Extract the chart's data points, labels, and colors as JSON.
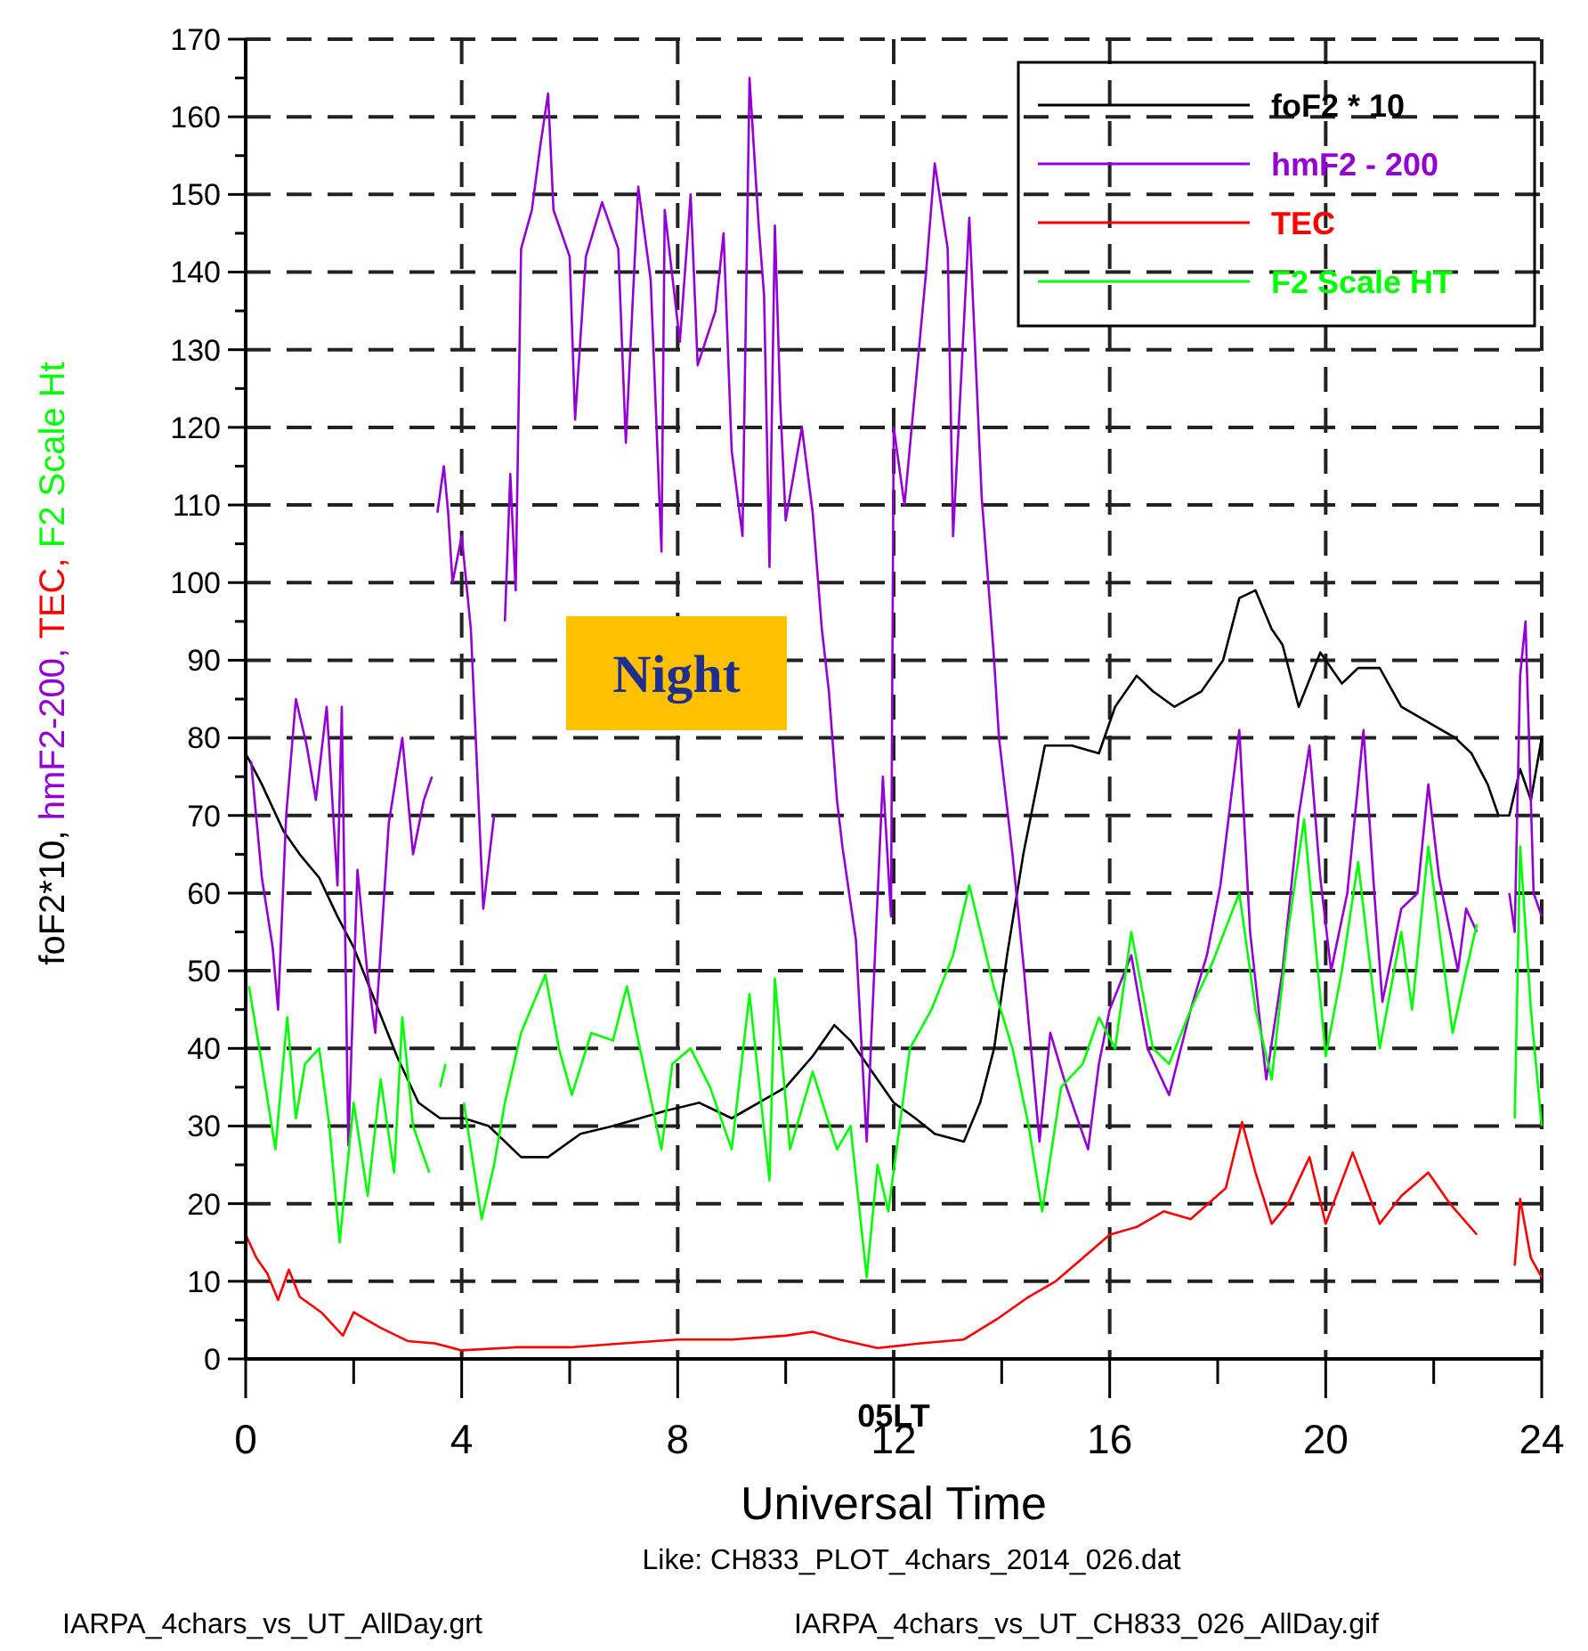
{
  "chart_data": {
    "type": "line",
    "ylabel": "foF2*10, hmF2-200, TEC, F2 Scale Ht",
    "xlabel": "Universal Time",
    "xlim": [
      0,
      24
    ],
    "xticks": [
      0,
      {
        "value": 2,
        "label": null
      },
      4,
      {
        "value": 6,
        "label": null
      },
      8,
      {
        "value": 10,
        "label": null
      },
      12,
      {
        "value": 14,
        "label": null
      },
      16,
      {
        "value": 18,
        "label": null
      },
      20,
      {
        "value": 22,
        "label": null
      },
      24
    ],
    "ylim": [
      0,
      170
    ],
    "yticks": [
      0,
      {
        "value": 5,
        "label": null
      },
      10,
      {
        "value": 15,
        "label": null
      },
      20,
      {
        "value": 25,
        "label": null
      },
      30,
      {
        "value": 35,
        "label": null
      },
      40,
      {
        "value": 45,
        "label": null
      },
      50,
      {
        "value": 55,
        "label": null
      },
      60,
      {
        "value": 65,
        "label": null
      },
      70,
      {
        "value": 75,
        "label": null
      },
      80,
      {
        "value": 85,
        "label": null
      },
      90,
      {
        "value": 95,
        "label": null
      },
      100,
      {
        "value": 105,
        "label": null
      },
      110,
      {
        "value": 115,
        "label": null
      },
      120,
      {
        "value": 125,
        "label": null
      },
      130,
      {
        "value": 135,
        "label": null
      },
      140,
      {
        "value": 145,
        "label": null
      },
      150,
      {
        "value": 155,
        "label": null
      },
      160,
      {
        "value": 165,
        "label": null
      },
      170
    ],
    "grid": true,
    "legend": "top right",
    "annotations": [
      {
        "text": "05LT",
        "x": 12
      },
      "Night",
      "Like: CH833_PLOT_4chars_2014_026.dat",
      "IARPA_4chars_vs_UT_AllDay.grt",
      "IARPA_4chars_vs_UT_CH833_026_AllDay.gif"
    ],
    "series": [
      {
        "name": "foF2 * 10",
        "color": "#000000",
        "x": [
          0,
          0.3,
          0.7,
          1.0,
          1.36,
          1.7,
          2.0,
          2.4,
          2.8,
          3.2,
          3.6,
          4.04,
          4.5,
          5.1,
          5.6,
          6.2,
          6.8,
          7.3,
          7.8,
          8.4,
          9.0,
          9.5,
          10.0,
          10.5,
          10.9,
          11.2,
          11.6,
          12.0,
          12.4,
          12.76,
          13.3,
          13.6,
          13.86,
          14.1,
          14.4,
          14.8,
          15.3,
          15.8,
          16.1,
          16.5,
          16.8,
          17.2,
          17.7,
          18.1,
          18.4,
          18.7,
          19.0,
          19.2,
          19.5,
          19.9,
          20.3,
          20.6,
          21.0,
          21.4,
          21.9,
          22.4,
          22.7,
          23.0,
          23.2,
          23.4,
          23.6,
          23.8,
          24
        ],
        "values": [
          78,
          74,
          68,
          65,
          62,
          57,
          53,
          46,
          39,
          33,
          31,
          31,
          30,
          26,
          26,
          29,
          30,
          31,
          32,
          33,
          31,
          33,
          35,
          39,
          43,
          41,
          37,
          33,
          31,
          29,
          28,
          33,
          40,
          52,
          65,
          79,
          79,
          78,
          84,
          88,
          86,
          84,
          86,
          90,
          98,
          99,
          94,
          92,
          84,
          91,
          87,
          89,
          89,
          84,
          82,
          80,
          78,
          74,
          70,
          70,
          76,
          72,
          80
        ]
      },
      {
        "name": "hmF2 - 200",
        "color": "#9400d3",
        "x": [
          0.1,
          0.3,
          0.5,
          0.6,
          0.75,
          0.93,
          1.13,
          1.3,
          1.5,
          1.7,
          1.78,
          1.9,
          2.07,
          2.25,
          2.4,
          2.65,
          2.9,
          3.1,
          3.3,
          3.45,
          3.5,
          3.55,
          3.67,
          3.75,
          3.83,
          4.0,
          4.17,
          4.26,
          4.4,
          4.6,
          4.65,
          4.8,
          4.9,
          5.0,
          5.1,
          5.3,
          5.45,
          5.6,
          5.7,
          6.0,
          6.1,
          6.3,
          6.6,
          6.9,
          7.04,
          7.27,
          7.5,
          7.7,
          7.76,
          8.04,
          8.24,
          8.37,
          8.7,
          8.85,
          9.0,
          9.2,
          9.33,
          9.5,
          9.6,
          9.7,
          9.8,
          9.9,
          10.0,
          10.3,
          10.5,
          10.67,
          10.8,
          10.95,
          11.05,
          11.3,
          11.5,
          11.8,
          11.95,
          12.0,
          12.2,
          12.4,
          12.6,
          12.76,
          13.0,
          13.1,
          13.4,
          13.63,
          13.85,
          13.95,
          14.2,
          14.4,
          14.7,
          14.9,
          15.2,
          15.6,
          15.8,
          16.0,
          16.4,
          16.7,
          17.1,
          17.5,
          17.8,
          18.05,
          18.4,
          18.6,
          18.9,
          19.2,
          19.5,
          19.7,
          19.9,
          20.1,
          20.4,
          20.7,
          20.9,
          21.05,
          21.4,
          21.7,
          21.9,
          22.1,
          22.45,
          22.6,
          22.8,
          22.9,
          23.4,
          23.5,
          23.6,
          23.7,
          23.85,
          24
        ],
        "values": [
          77,
          62,
          53,
          45,
          70,
          85,
          79,
          72,
          84,
          61,
          84,
          27.5,
          63,
          50,
          42,
          69,
          80,
          65,
          72,
          75,
          null,
          109,
          115,
          109,
          100,
          106,
          94,
          80,
          58,
          70,
          null,
          95,
          114,
          99,
          143,
          148,
          156,
          163,
          148,
          142,
          121,
          142,
          149,
          143,
          118,
          151,
          139,
          104,
          148,
          131,
          150,
          128,
          135,
          145,
          117,
          106,
          165,
          146,
          137,
          102,
          146,
          123,
          108,
          120,
          109,
          94,
          86,
          72,
          66,
          54,
          28,
          75,
          57,
          120,
          110,
          125,
          140,
          154,
          143,
          106,
          147,
          111,
          91,
          80,
          65,
          51,
          28,
          42,
          35,
          27,
          38,
          45,
          52,
          40,
          34,
          45,
          52,
          61,
          81,
          55,
          36,
          50,
          70,
          79,
          62,
          50,
          60,
          81,
          60,
          46,
          58,
          60,
          74,
          62,
          50,
          58,
          55,
          null,
          60,
          55,
          88,
          95,
          60,
          57
        ]
      },
      {
        "name": "TEC",
        "color": "#ff0000",
        "x": [
          0,
          0.2,
          0.4,
          0.6,
          0.8,
          1.0,
          1.4,
          1.8,
          2.0,
          2.5,
          3.0,
          3.5,
          4.0,
          5,
          6,
          7,
          8,
          9,
          10,
          10.5,
          11,
          11.7,
          12.5,
          13.3,
          13.95,
          14.5,
          15,
          15.5,
          16,
          16.5,
          17,
          17.5,
          18.15,
          18.45,
          18.7,
          19.0,
          19.3,
          19.7,
          20.0,
          20.5,
          21.0,
          21.4,
          21.9,
          22.3,
          22.8,
          22.9,
          23.5,
          23.6,
          23.8,
          24
        ],
        "values": [
          16,
          13,
          11,
          7.6,
          11.5,
          8,
          6,
          3,
          6,
          4,
          2.3,
          2,
          1.1,
          1.5,
          1.5,
          2,
          2.5,
          2.5,
          3,
          3.5,
          2.5,
          1.4,
          2,
          2.5,
          5.3,
          8,
          10,
          13,
          16,
          17,
          19,
          18,
          22,
          30.5,
          24,
          17.4,
          20,
          26,
          17.4,
          26.6,
          17.4,
          21,
          24,
          20,
          16,
          null,
          12,
          20.6,
          13,
          10.5
        ]
      },
      {
        "name": "F2 Scale HT",
        "color": "#00ff00",
        "x": [
          0.06,
          0.3,
          0.55,
          0.77,
          0.93,
          1.1,
          1.36,
          1.55,
          1.74,
          2.0,
          2.26,
          2.5,
          2.75,
          2.9,
          3.1,
          3.4,
          3.5,
          3.6,
          3.7,
          3.8,
          4.04,
          4.37,
          4.6,
          4.8,
          5.1,
          5.55,
          5.8,
          6.04,
          6.4,
          6.8,
          7.06,
          7.27,
          7.7,
          7.9,
          8.24,
          8.6,
          9.0,
          9.33,
          9.7,
          9.8,
          10.08,
          10.5,
          10.95,
          11.2,
          11.5,
          11.7,
          11.9,
          12.3,
          12.7,
          13.1,
          13.4,
          13.85,
          14.2,
          14.5,
          14.75,
          15.1,
          15.5,
          15.8,
          16.1,
          16.4,
          16.8,
          17.1,
          17.5,
          17.9,
          18.4,
          18.7,
          19.0,
          19.3,
          19.6,
          20.0,
          20.3,
          20.6,
          21.0,
          21.4,
          21.6,
          21.9,
          22.35,
          22.6,
          22.8,
          22.9,
          23.5,
          23.6,
          23.8,
          24
        ],
        "values": [
          48,
          38,
          27,
          44,
          31,
          38,
          40,
          30,
          15,
          33,
          21,
          36,
          24,
          44,
          30,
          24,
          null,
          35,
          38,
          null,
          33,
          18,
          25,
          33,
          42,
          49.5,
          40,
          34,
          42,
          41,
          48,
          41,
          27,
          38,
          40,
          35,
          27,
          47,
          23,
          49,
          27,
          37,
          27,
          30,
          10.5,
          25,
          19,
          40,
          45,
          52,
          61,
          48,
          40,
          30,
          19,
          35,
          38,
          44,
          40,
          55,
          40,
          38,
          45,
          51,
          60,
          45,
          36,
          55,
          69.5,
          39,
          50,
          64,
          40,
          55,
          45,
          66,
          42,
          50,
          56,
          null,
          31,
          66,
          45,
          30
        ]
      }
    ]
  }
}
